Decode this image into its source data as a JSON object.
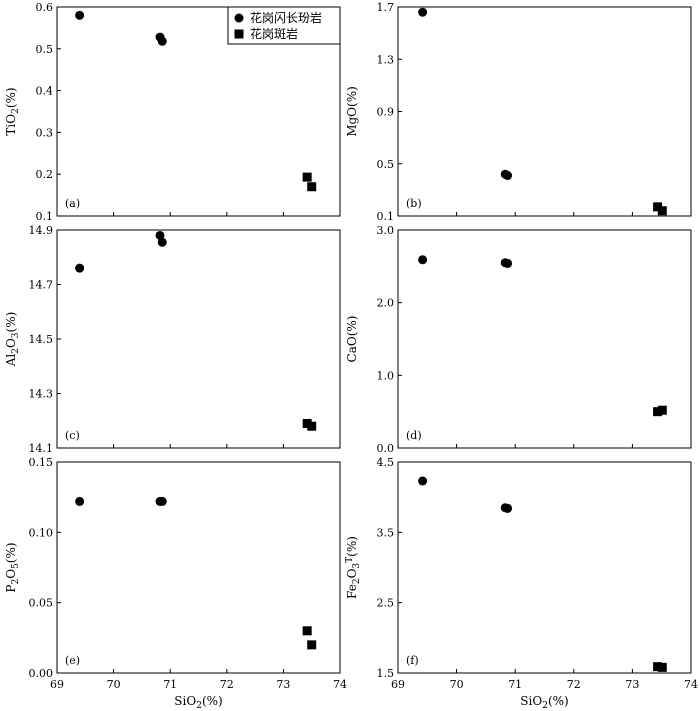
{
  "chart_data": {
    "type": "scatter",
    "layout": "3x2 grid of scatter panels sharing SiO2 x-axis",
    "legend": {
      "placement": "top-right of panel (a)",
      "entries": [
        {
          "label": "花岗闪长玢岩",
          "marker": "circle"
        },
        {
          "label": "花岗斑岩",
          "marker": "square"
        }
      ]
    },
    "xlabel": "SiO",
    "xlabel_sub": "2",
    "xlabel_unit": "(%)",
    "xlim": [
      69,
      74
    ],
    "xticks": [
      "69",
      "70",
      "71",
      "72",
      "73",
      "74"
    ],
    "panels": [
      {
        "id": "a",
        "tag": "(a)",
        "ylabel": "TiO",
        "ylabel_sub": "2",
        "ylabel_unit": "(%)",
        "ylim": [
          0.1,
          0.6
        ],
        "yticks": [
          "0.1",
          "0.2",
          "0.3",
          "0.4",
          "0.5",
          "0.6"
        ],
        "series": [
          {
            "marker": "circle",
            "points": [
              [
                69.4,
                0.58
              ],
              [
                70.82,
                0.528
              ],
              [
                70.86,
                0.518
              ]
            ]
          },
          {
            "marker": "square",
            "points": [
              [
                73.42,
                0.193
              ],
              [
                73.5,
                0.17
              ]
            ]
          }
        ]
      },
      {
        "id": "b",
        "tag": "(b)",
        "ylabel": "MgO",
        "ylabel_sub": "",
        "ylabel_unit": "(%)",
        "ylim": [
          0.1,
          1.7
        ],
        "yticks": [
          "0.1",
          "0.5",
          "0.9",
          "1.3",
          "1.7"
        ],
        "series": [
          {
            "marker": "circle",
            "points": [
              [
                69.42,
                1.66
              ],
              [
                70.83,
                0.42
              ],
              [
                70.87,
                0.41
              ]
            ]
          },
          {
            "marker": "square",
            "points": [
              [
                73.43,
                0.17
              ],
              [
                73.51,
                0.14
              ]
            ]
          }
        ]
      },
      {
        "id": "c",
        "tag": "(c)",
        "ylabel": "Al",
        "ylabel_sub": "2",
        "ylabel_mid": "O",
        "ylabel_sub2": "3",
        "ylabel_unit": "(%)",
        "ylim": [
          14.1,
          14.9
        ],
        "yticks": [
          "14.1",
          "14.3",
          "14.5",
          "14.7",
          "14.9"
        ],
        "series": [
          {
            "marker": "circle",
            "points": [
              [
                69.4,
                14.76
              ],
              [
                70.82,
                14.88
              ],
              [
                70.86,
                14.855
              ]
            ]
          },
          {
            "marker": "square",
            "points": [
              [
                73.42,
                14.19
              ],
              [
                73.5,
                14.18
              ]
            ]
          }
        ]
      },
      {
        "id": "d",
        "tag": "(d)",
        "ylabel": "CaO",
        "ylabel_sub": "",
        "ylabel_unit": "(%)",
        "ylim": [
          0.0,
          3.0
        ],
        "yticks": [
          "0.0",
          "1.0",
          "2.0",
          "3.0"
        ],
        "series": [
          {
            "marker": "circle",
            "points": [
              [
                69.42,
                2.59
              ],
              [
                70.83,
                2.55
              ],
              [
                70.87,
                2.54
              ]
            ]
          },
          {
            "marker": "square",
            "points": [
              [
                73.43,
                0.5
              ],
              [
                73.51,
                0.52
              ]
            ]
          }
        ]
      },
      {
        "id": "e",
        "tag": "(e)",
        "ylabel": "P",
        "ylabel_sub": "2",
        "ylabel_mid": "O",
        "ylabel_sub2": "5",
        "ylabel_unit": "(%)",
        "ylim": [
          0.0,
          0.15
        ],
        "yticks": [
          "0.00",
          "0.05",
          "0.10",
          "0.15"
        ],
        "series": [
          {
            "marker": "circle",
            "points": [
              [
                69.4,
                0.122
              ],
              [
                70.82,
                0.122
              ],
              [
                70.86,
                0.122
              ]
            ]
          },
          {
            "marker": "square",
            "points": [
              [
                73.42,
                0.03
              ],
              [
                73.5,
                0.02
              ]
            ]
          }
        ]
      },
      {
        "id": "f",
        "tag": "(f)",
        "ylabel": "Fe",
        "ylabel_sub": "2",
        "ylabel_mid": "O",
        "ylabel_sub2": "3",
        "ylabel_sup": "T",
        "ylabel_unit": "(%)",
        "ylim": [
          1.5,
          4.5
        ],
        "yticks": [
          "1.5",
          "2.5",
          "3.5",
          "4.5"
        ],
        "series": [
          {
            "marker": "circle",
            "points": [
              [
                69.42,
                4.23
              ],
              [
                70.83,
                3.85
              ],
              [
                70.87,
                3.84
              ]
            ]
          },
          {
            "marker": "square",
            "points": [
              [
                73.43,
                1.59
              ],
              [
                73.51,
                1.58
              ]
            ]
          }
        ]
      }
    ]
  }
}
